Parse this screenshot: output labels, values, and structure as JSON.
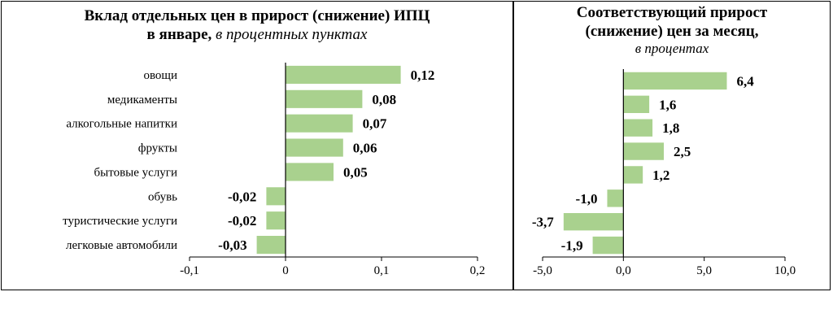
{
  "chart_data": [
    {
      "type": "bar",
      "orientation": "horizontal",
      "title_line1": "Вклад отдельных цен в прирост (снижение) ИПЦ",
      "title_line2_bold": "в январе,",
      "title_line2_italic": "в процентных пунктах",
      "categories": [
        "овощи",
        "медикаменты",
        "алкогольные напитки",
        "фрукты",
        "бытовые услуги",
        "обувь",
        "туристические услуги",
        "легковые автомобили"
      ],
      "values": [
        0.12,
        0.08,
        0.07,
        0.06,
        0.05,
        -0.02,
        -0.02,
        -0.03
      ],
      "value_labels": [
        "0,12",
        "0,08",
        "0,07",
        "0,06",
        "0,05",
        "-0,02",
        "-0,02",
        "-0,03"
      ],
      "xlim": [
        -0.1,
        0.2
      ],
      "xticks": [
        -0.1,
        0,
        0.1,
        0.2
      ],
      "xtick_labels": [
        "-0,1",
        "0",
        "0,1",
        "0,2"
      ],
      "bar_color": "#a9d18e",
      "grid": false
    },
    {
      "type": "bar",
      "orientation": "horizontal",
      "title_line1": "Соответствующий прирост",
      "title_line2": "(снижение) цен за месяц,",
      "title_line3_italic": "в процентах",
      "values": [
        6.4,
        1.6,
        1.8,
        2.5,
        1.2,
        -1.0,
        -3.7,
        -1.9
      ],
      "value_labels": [
        "6,4",
        "1,6",
        "1,8",
        "2,5",
        "1,2",
        "-1,0",
        "-3,7",
        "-1,9"
      ],
      "xlim": [
        -5,
        10
      ],
      "xticks": [
        -5,
        0,
        5,
        10
      ],
      "xtick_labels": [
        "-5,0",
        "0,0",
        "5,0",
        "10,0"
      ],
      "bar_color": "#a9d18e",
      "grid": false
    }
  ]
}
